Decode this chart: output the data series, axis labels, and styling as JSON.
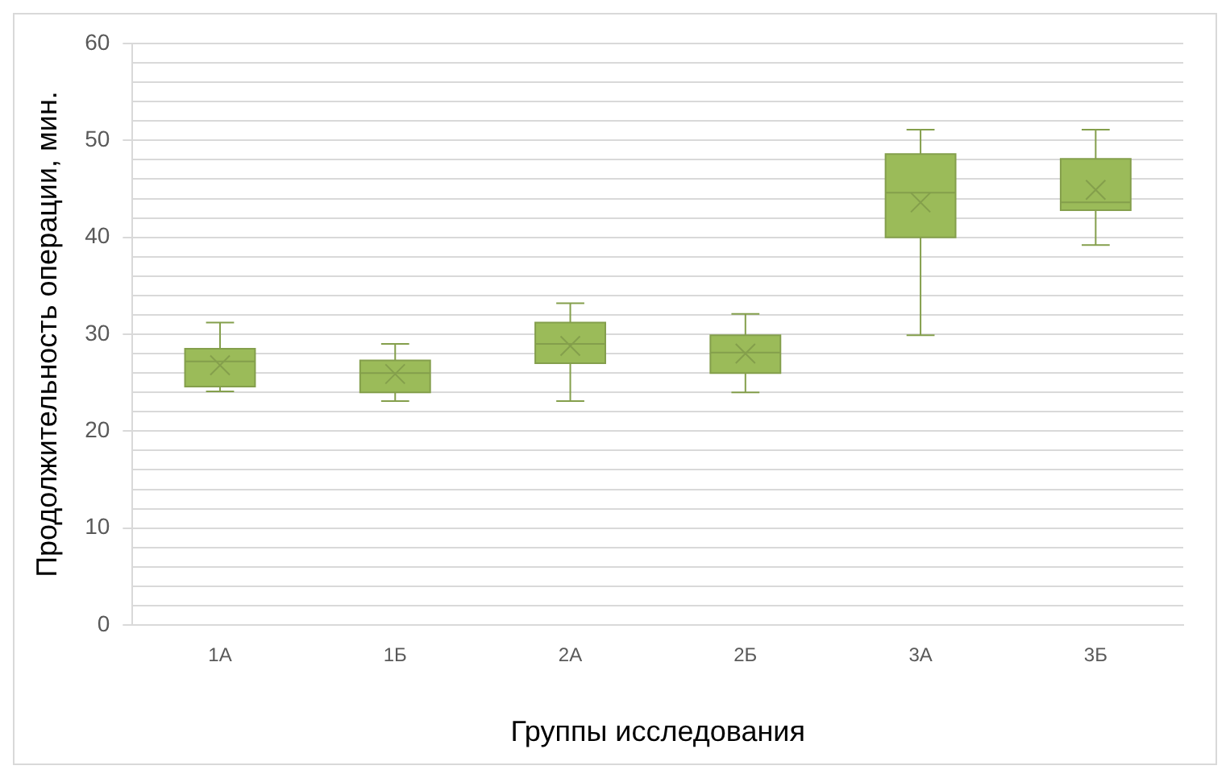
{
  "chart_data": {
    "type": "box",
    "xlabel": "Группы исследования",
    "ylabel": "Продолжительность операции, мин.",
    "categories": [
      "1А",
      "1Б",
      "2А",
      "2Б",
      "3А",
      "3Б"
    ],
    "color": "#9bbb59",
    "boxes": [
      {
        "low": 24.1,
        "q1": 24.6,
        "median": 27.2,
        "q3": 28.5,
        "high": 31.2,
        "mean": 26.8
      },
      {
        "low": 23.1,
        "q1": 24,
        "median": 26,
        "q3": 27.3,
        "high": 29,
        "mean": 25.9
      },
      {
        "low": 23.1,
        "q1": 27,
        "median": 29,
        "q3": 31.2,
        "high": 33.2,
        "mean": 28.8
      },
      {
        "low": 24,
        "q1": 26,
        "median": 28.1,
        "q3": 29.9,
        "high": 32.1,
        "mean": 28
      },
      {
        "low": 29.9,
        "q1": 40,
        "median": 44.6,
        "q3": 48.6,
        "high": 51.1,
        "mean": 43.6
      },
      {
        "low": 39.2,
        "q1": 42.8,
        "median": 43.6,
        "q3": 48.1,
        "high": 51.1,
        "mean": 44.9
      }
    ],
    "ylim": [
      0,
      60
    ],
    "yticks": [
      0,
      {
        "value": 2,
        "label": null
      },
      {
        "value": 4,
        "label": null
      },
      {
        "value": 6,
        "label": null
      },
      {
        "value": 8,
        "label": null
      },
      10,
      {
        "value": 12,
        "label": null
      },
      {
        "value": 14,
        "label": null
      },
      {
        "value": 16,
        "label": null
      },
      {
        "value": 18,
        "label": null
      },
      20,
      {
        "value": 22,
        "label": null
      },
      {
        "value": 24,
        "label": null
      },
      {
        "value": 26,
        "label": null
      },
      {
        "value": 28,
        "label": null
      },
      30,
      {
        "value": 32,
        "label": null
      },
      {
        "value": 34,
        "label": null
      },
      {
        "value": 36,
        "label": null
      },
      {
        "value": 38,
        "label": null
      },
      40,
      {
        "value": 42,
        "label": null
      },
      {
        "value": 44,
        "label": null
      },
      {
        "value": 46,
        "label": null
      },
      {
        "value": 48,
        "label": null
      },
      50,
      {
        "value": 52,
        "label": null
      },
      {
        "value": 54,
        "label": null
      },
      {
        "value": 56,
        "label": null
      },
      {
        "value": 58,
        "label": null
      },
      60
    ],
    "grid": "y",
    "legend": false,
    "marker": "cross"
  }
}
